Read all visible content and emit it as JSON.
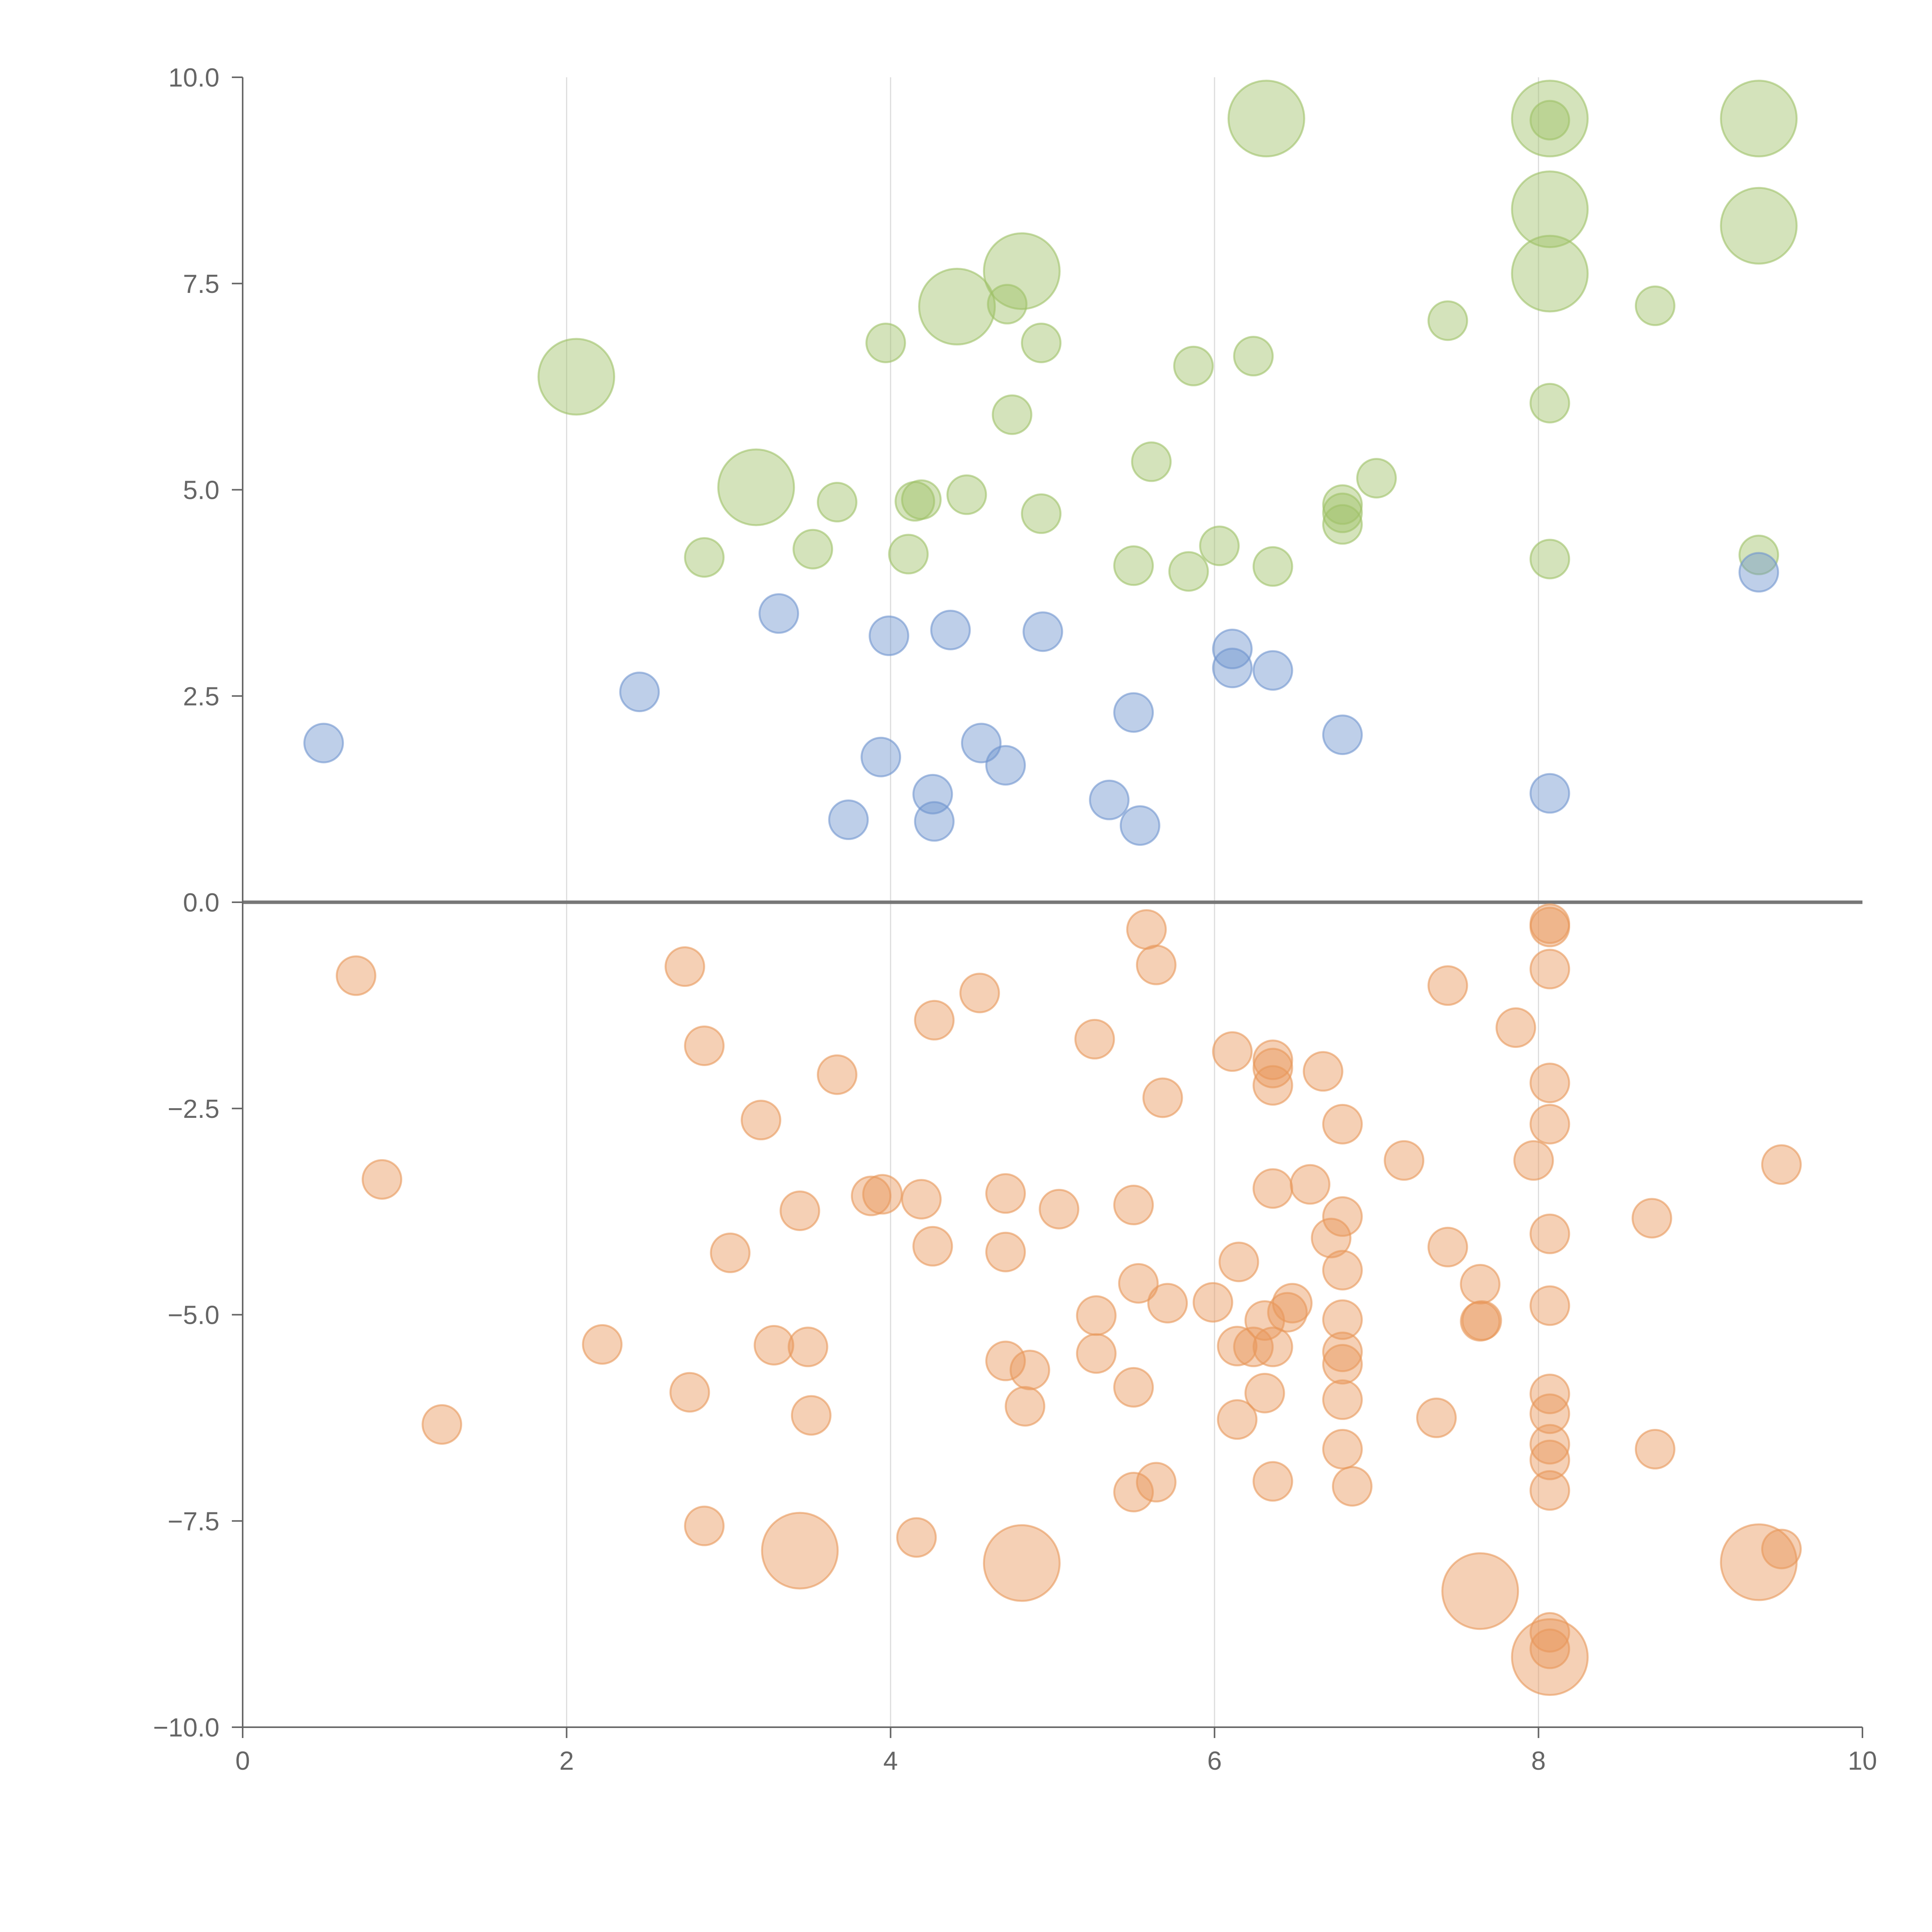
{
  "chart_data": {
    "type": "scatter",
    "title": "",
    "xlabel": "",
    "ylabel": "",
    "xlim": [
      0,
      10
    ],
    "ylim": [
      -10,
      10
    ],
    "grid": "vertical",
    "x_ticks": [
      0,
      2,
      4,
      6,
      8,
      10
    ],
    "x_tick_labels": [
      "0",
      "2",
      "4",
      "6",
      "8",
      "10"
    ],
    "y_ticks": [
      10,
      7.5,
      5,
      2.5,
      0,
      -2.5,
      -5,
      -7.5,
      -10
    ],
    "y_tick_labels": [
      "10.0",
      "7.5",
      "5.0",
      "2.5",
      "0.0",
      "−2.5",
      "−5.0",
      "−7.5",
      "−10.0"
    ],
    "colors": {
      "green": "#9fc168",
      "blue": "#6f94cf",
      "orange": "#e8975a"
    },
    "series": [
      {
        "name": "green",
        "color": "#9fc168",
        "points": [
          [
            2.06,
            6.37,
            2
          ],
          [
            3.17,
            5.03,
            2
          ],
          [
            4.41,
            7.22,
            2
          ],
          [
            4.81,
            7.65,
            2
          ],
          [
            6.32,
            9.5,
            2
          ],
          [
            8.07,
            9.5,
            2
          ],
          [
            8.07,
            8.4,
            2
          ],
          [
            8.07,
            7.62,
            2
          ],
          [
            9.36,
            9.5,
            2
          ],
          [
            9.36,
            8.2,
            2
          ],
          [
            2.85,
            4.18,
            1
          ],
          [
            3.52,
            4.28,
            1
          ],
          [
            3.67,
            4.85,
            1
          ],
          [
            3.97,
            6.78,
            1
          ],
          [
            4.11,
            4.22,
            1
          ],
          [
            4.15,
            4.86,
            1
          ],
          [
            4.19,
            4.88,
            1
          ],
          [
            4.47,
            4.94,
            1
          ],
          [
            4.72,
            7.25,
            1
          ],
          [
            4.75,
            5.91,
            1
          ],
          [
            4.93,
            4.71,
            1
          ],
          [
            4.93,
            6.78,
            1
          ],
          [
            5.5,
            4.08,
            1
          ],
          [
            5.61,
            5.34,
            1
          ],
          [
            5.84,
            4.01,
            1
          ],
          [
            5.87,
            6.5,
            1
          ],
          [
            6.03,
            4.32,
            1
          ],
          [
            6.24,
            6.62,
            1
          ],
          [
            6.36,
            4.07,
            1
          ],
          [
            6.79,
            4.82,
            1
          ],
          [
            6.79,
            4.58,
            1
          ],
          [
            6.79,
            4.72,
            1
          ],
          [
            7.0,
            5.14,
            1
          ],
          [
            7.44,
            7.05,
            1
          ],
          [
            8.07,
            9.48,
            1
          ],
          [
            8.07,
            6.05,
            1
          ],
          [
            8.07,
            4.16,
            1
          ],
          [
            8.72,
            7.23,
            1
          ],
          [
            9.36,
            4.21,
            1
          ]
        ]
      },
      {
        "name": "blue",
        "color": "#6f94cf",
        "points": [
          [
            0.5,
            1.93,
            1
          ],
          [
            2.45,
            2.55,
            1
          ],
          [
            3.31,
            3.5,
            1
          ],
          [
            3.74,
            1.0,
            1
          ],
          [
            3.94,
            1.76,
            1
          ],
          [
            3.99,
            3.23,
            1
          ],
          [
            4.26,
            1.31,
            1
          ],
          [
            4.27,
            0.98,
            1
          ],
          [
            4.37,
            3.3,
            1
          ],
          [
            4.56,
            1.93,
            1
          ],
          [
            4.71,
            1.66,
            1
          ],
          [
            4.94,
            3.28,
            1
          ],
          [
            5.35,
            1.24,
            1
          ],
          [
            5.5,
            2.3,
            1
          ],
          [
            5.54,
            0.93,
            1
          ],
          [
            6.11,
            3.07,
            1
          ],
          [
            6.11,
            2.84,
            1
          ],
          [
            6.36,
            2.81,
            1
          ],
          [
            6.79,
            2.03,
            1
          ],
          [
            8.07,
            1.32,
            1
          ],
          [
            9.36,
            4.0,
            1
          ]
        ]
      },
      {
        "name": "orange",
        "color": "#e8975a",
        "points": [
          [
            0.7,
            -0.89,
            1
          ],
          [
            0.86,
            -3.36,
            1
          ],
          [
            1.23,
            -6.33,
            1
          ],
          [
            2.22,
            -5.36,
            1
          ],
          [
            2.73,
            -0.78,
            1
          ],
          [
            2.76,
            -5.94,
            1
          ],
          [
            2.85,
            -1.74,
            1
          ],
          [
            2.85,
            -7.56,
            1
          ],
          [
            3.01,
            -4.25,
            1
          ],
          [
            3.2,
            -2.64,
            1
          ],
          [
            3.28,
            -5.37,
            1
          ],
          [
            3.44,
            -3.74,
            1
          ],
          [
            3.44,
            -7.86,
            2
          ],
          [
            3.49,
            -5.39,
            1
          ],
          [
            3.51,
            -6.22,
            1
          ],
          [
            3.67,
            -2.09,
            1
          ],
          [
            3.88,
            -3.56,
            1
          ],
          [
            3.95,
            -3.54,
            1
          ],
          [
            4.16,
            -7.7,
            1
          ],
          [
            4.19,
            -3.6,
            1
          ],
          [
            4.26,
            -4.17,
            1
          ],
          [
            4.27,
            -1.43,
            1
          ],
          [
            4.55,
            -1.1,
            1
          ],
          [
            4.71,
            -3.53,
            1
          ],
          [
            4.71,
            -4.24,
            1
          ],
          [
            4.71,
            -5.56,
            1
          ],
          [
            4.81,
            -8.01,
            2
          ],
          [
            4.83,
            -6.11,
            1
          ],
          [
            4.86,
            -5.67,
            1
          ],
          [
            5.04,
            -3.72,
            1
          ],
          [
            5.26,
            -1.66,
            1
          ],
          [
            5.27,
            -5.01,
            1
          ],
          [
            5.27,
            -5.47,
            1
          ],
          [
            5.5,
            -3.67,
            1
          ],
          [
            5.5,
            -5.88,
            1
          ],
          [
            5.5,
            -7.15,
            1
          ],
          [
            5.53,
            -4.62,
            1
          ],
          [
            5.58,
            -0.33,
            1
          ],
          [
            5.64,
            -0.76,
            1
          ],
          [
            5.64,
            -7.03,
            1
          ],
          [
            5.68,
            -2.37,
            1
          ],
          [
            5.71,
            -4.86,
            1
          ],
          [
            5.99,
            -4.85,
            1
          ],
          [
            6.11,
            -1.81,
            1
          ],
          [
            6.14,
            -5.38,
            1
          ],
          [
            6.14,
            -6.27,
            1
          ],
          [
            6.15,
            -4.36,
            1
          ],
          [
            6.24,
            -5.39,
            1
          ],
          [
            6.31,
            -5.07,
            1
          ],
          [
            6.31,
            -5.95,
            1
          ],
          [
            6.36,
            -1.91,
            1
          ],
          [
            6.36,
            -2.01,
            1
          ],
          [
            6.36,
            -2.22,
            1
          ],
          [
            6.36,
            -3.47,
            1
          ],
          [
            6.36,
            -5.39,
            1
          ],
          [
            6.36,
            -7.02,
            1
          ],
          [
            6.45,
            -4.97,
            1
          ],
          [
            6.48,
            -4.86,
            1
          ],
          [
            6.59,
            -3.42,
            1
          ],
          [
            6.67,
            -2.05,
            1
          ],
          [
            6.72,
            -4.07,
            1
          ],
          [
            6.79,
            -2.69,
            1
          ],
          [
            6.79,
            -3.81,
            1
          ],
          [
            6.79,
            -4.46,
            1
          ],
          [
            6.79,
            -5.06,
            1
          ],
          [
            6.79,
            -5.45,
            1
          ],
          [
            6.79,
            -5.6,
            1
          ],
          [
            6.79,
            -6.03,
            1
          ],
          [
            6.79,
            -6.63,
            1
          ],
          [
            6.85,
            -7.08,
            1
          ],
          [
            7.17,
            -3.13,
            1
          ],
          [
            7.37,
            -6.25,
            1
          ],
          [
            7.44,
            -1.01,
            1
          ],
          [
            7.44,
            -4.18,
            1
          ],
          [
            7.64,
            -4.63,
            1
          ],
          [
            7.64,
            -5.08,
            1
          ],
          [
            7.65,
            -5.07,
            1
          ],
          [
            7.64,
            -8.35,
            2
          ],
          [
            7.86,
            -1.52,
            1
          ],
          [
            7.97,
            -3.13,
            1
          ],
          [
            8.07,
            -0.26,
            1
          ],
          [
            8.07,
            -0.3,
            1
          ],
          [
            8.07,
            -0.81,
            1
          ],
          [
            8.07,
            -2.19,
            1
          ],
          [
            8.07,
            -2.69,
            1
          ],
          [
            8.07,
            -4.02,
            1
          ],
          [
            8.07,
            -4.89,
            1
          ],
          [
            8.07,
            -5.96,
            1
          ],
          [
            8.07,
            -6.2,
            1
          ],
          [
            8.07,
            -6.57,
            1
          ],
          [
            8.07,
            -6.76,
            1
          ],
          [
            8.07,
            -7.13,
            1
          ],
          [
            8.07,
            -8.85,
            1
          ],
          [
            8.07,
            -9.05,
            1
          ],
          [
            8.07,
            -9.15,
            2
          ],
          [
            8.7,
            -3.83,
            1
          ],
          [
            8.72,
            -6.63,
            1
          ],
          [
            9.36,
            -8.0,
            2
          ],
          [
            9.5,
            -3.18,
            1
          ],
          [
            9.5,
            -7.84,
            1
          ]
        ]
      }
    ]
  }
}
